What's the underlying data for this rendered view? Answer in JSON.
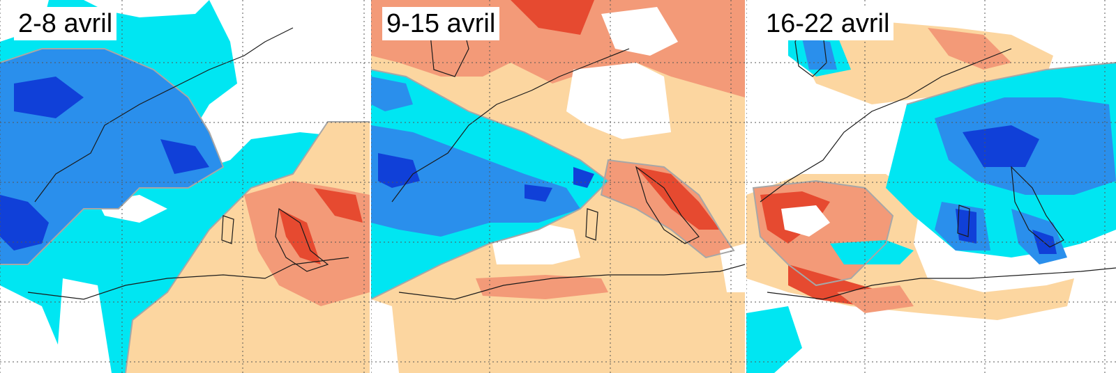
{
  "panels": [
    {
      "id": "p1",
      "label": "2-8 avril"
    },
    {
      "id": "p2",
      "label": "9-15 avril"
    },
    {
      "id": "p3",
      "label": "16-22 avril"
    }
  ],
  "colors": {
    "strong_cold": "#1040d8",
    "cold": "#2a8fec",
    "cool": "#00e6f2",
    "neutral": "#ffffff",
    "warm": "#fcd6a0",
    "hot": "#f39a78",
    "very_hot": "#e64a30",
    "contour": "#a7a7a7",
    "coastline": "#1a1a1a",
    "gridline": "#555555"
  },
  "map": {
    "gridlines": "dotted",
    "coastlines": "on"
  }
}
